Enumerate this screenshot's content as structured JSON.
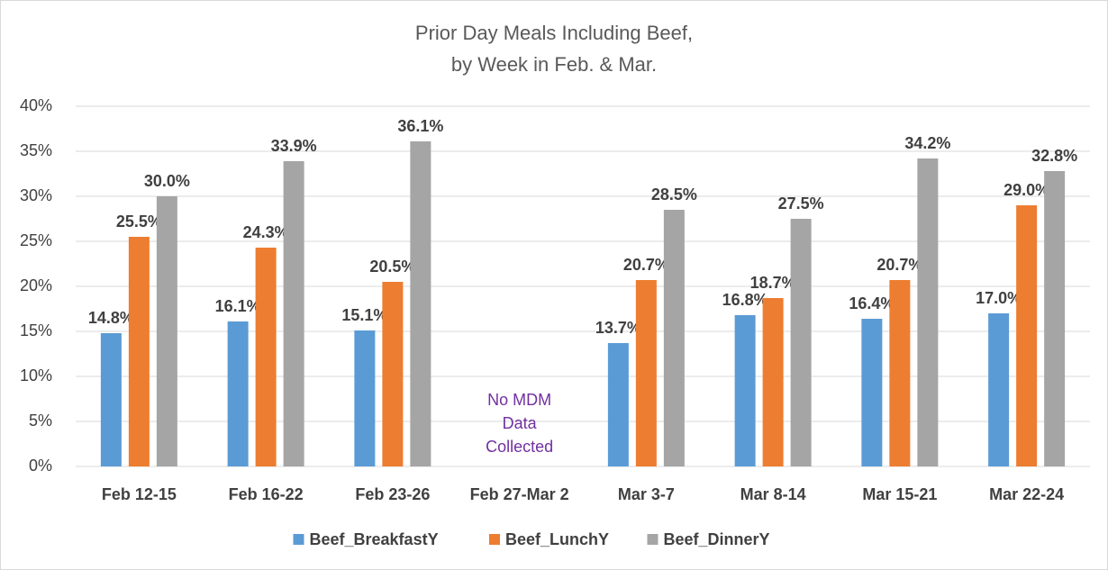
{
  "chart_data": {
    "type": "bar",
    "title": [
      "Prior Day Meals Including Beef,",
      "by Week in Feb. & Mar."
    ],
    "categories": [
      "Feb 12-15",
      "Feb 16-22",
      "Feb 23-26",
      "Feb 27-Mar 2",
      "Mar 3-7",
      "Mar 8-14",
      "Mar 15-21",
      "Mar 22-24"
    ],
    "series": [
      {
        "name": "Beef_BreakfastY",
        "color": "#5b9bd5",
        "values": [
          14.8,
          16.1,
          15.1,
          null,
          13.7,
          16.8,
          16.4,
          17.0
        ],
        "value_labels": [
          "14.8%",
          "16.1%",
          "15.1%",
          null,
          "13.7%",
          "16.8%",
          "16.4%",
          "17.0%"
        ]
      },
      {
        "name": "Beef_LunchY",
        "color": "#ed7d31",
        "values": [
          25.5,
          24.3,
          20.5,
          null,
          20.7,
          18.7,
          20.7,
          29.0
        ],
        "value_labels": [
          "25.5%",
          "24.3%",
          "20.5%",
          null,
          "20.7%",
          "18.7%",
          "20.7%",
          "29.0%"
        ]
      },
      {
        "name": "Beef_DinnerY",
        "color": "#a5a5a5",
        "values": [
          30.0,
          33.9,
          36.1,
          null,
          28.5,
          27.5,
          34.2,
          32.8
        ],
        "value_labels": [
          "30.0%",
          "33.9%",
          "36.1%",
          null,
          "28.5%",
          "27.5%",
          "34.2%",
          "32.8%"
        ]
      }
    ],
    "annotation": [
      "No MDM",
      "Data",
      "Collected"
    ],
    "ylim": [
      0,
      40
    ],
    "yticks": [
      {
        "value": 0,
        "label": "0%"
      },
      {
        "value": 5,
        "label": "5%"
      },
      {
        "value": 10,
        "label": "10%"
      },
      {
        "value": 15,
        "label": "15%"
      },
      {
        "value": 20,
        "label": "20%"
      },
      {
        "value": 25,
        "label": "25%"
      },
      {
        "value": 30,
        "label": "30%"
      },
      {
        "value": 35,
        "label": "35%"
      },
      {
        "value": 40,
        "label": "40%"
      }
    ],
    "grid": true,
    "legend": "bottom"
  }
}
